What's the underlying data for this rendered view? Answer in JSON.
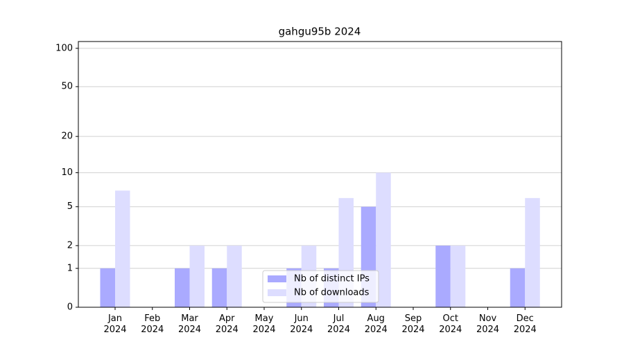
{
  "chart_data": {
    "type": "bar",
    "title": "gahgu95b 2024",
    "categories": [
      "Jan\n2024",
      "Feb\n2024",
      "Mar\n2024",
      "Apr\n2024",
      "May\n2024",
      "Jun\n2024",
      "Jul\n2024",
      "Aug\n2024",
      "Sep\n2024",
      "Oct\n2024",
      "Nov\n2024",
      "Dec\n2024"
    ],
    "series": [
      {
        "name": "Nb of distinct IPs",
        "color": "#aaaaff",
        "values": [
          1,
          0,
          1,
          1,
          0,
          1,
          1,
          5,
          0,
          2,
          0,
          1
        ]
      },
      {
        "name": "Nb of downloads",
        "color": "#ddddff",
        "values": [
          7,
          0,
          2,
          2,
          0,
          2,
          6,
          10,
          0,
          2,
          0,
          6
        ]
      }
    ],
    "yscale": "log1p",
    "ylim": [
      0,
      113
    ],
    "yticks": [
      0,
      1,
      2,
      5,
      10,
      20,
      50,
      100
    ],
    "grid": true,
    "legend": "lower center"
  }
}
